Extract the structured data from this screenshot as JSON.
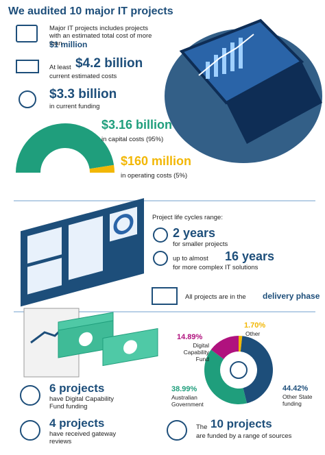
{
  "header": {
    "title": "We audited 10 major IT projects"
  },
  "costs": [
    {
      "text": "Major IT projects includes projects with an estimated total cost of more than",
      "highlight": "$1 million"
    },
    {
      "prefix": "At least",
      "highlight": "$4.2 billion",
      "text": "current estimated costs"
    },
    {
      "highlight": "$3.3 billion",
      "text": "in current funding"
    }
  ],
  "lifecycle": {
    "intro": "Project life cycles range:",
    "items": [
      {
        "highlight": "2 years",
        "text": "for smaller projects"
      },
      {
        "prefix": "up to almost",
        "highlight": "16 years",
        "text": "for more complex IT solutions"
      }
    ],
    "phase": {
      "text": "All projects are in the",
      "highlight": "delivery phase"
    }
  },
  "funding": [
    {
      "highlight": "6 projects",
      "text": "have Digital Capability Fund funding"
    },
    {
      "highlight": "4 projects",
      "text": "have received gateway reviews"
    },
    {
      "prefix": "The",
      "highlight": "10 projects",
      "text": "are funded by a range of sources"
    }
  ],
  "chart_data": [
    {
      "type": "pie",
      "semicircle": true,
      "categories": [
        "in capital costs (95%)",
        "in operating costs (5%)"
      ],
      "amounts": [
        "$3.16 billion",
        "$160 million"
      ],
      "values": [
        95,
        5
      ],
      "colors": [
        "#1f9e7c",
        "#f2b705"
      ]
    },
    {
      "type": "pie",
      "semicircle": false,
      "categories": [
        "Other",
        "Other State funding",
        "Australian Government",
        "Digital Capability Fund"
      ],
      "values": [
        1.7,
        44.42,
        38.99,
        14.89
      ],
      "value_labels": [
        "1.70%",
        "44.42%",
        "38.99%",
        "14.89%"
      ],
      "colors": [
        "#f2b705",
        "#1d4e7a",
        "#1f9e7c",
        "#b0127e"
      ]
    }
  ]
}
